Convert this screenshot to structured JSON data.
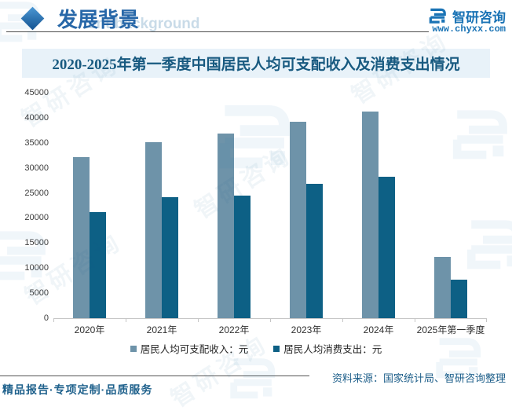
{
  "header": {
    "section_title": "发展背景",
    "section_ghost_text": "ent background",
    "brand": {
      "name": "智研咨询",
      "url": "www.chyxx.com"
    }
  },
  "chart_data": {
    "type": "bar",
    "title": "2020-2025年第一季度中国居民人均可支配收入及消费支出情况",
    "categories": [
      "2020年",
      "2021年",
      "2022年",
      "2023年",
      "2024年",
      "2025年第一季度"
    ],
    "series": [
      {
        "name": "居民人均可支配收入：元",
        "color": "#6e93a9",
        "values": [
          32189,
          35128,
          36883,
          39218,
          41314,
          12179
        ]
      },
      {
        "name": "居民人均消费支出：元",
        "color": "#0d6085",
        "values": [
          21210,
          24100,
          24538,
          26796,
          28227,
          7681
        ]
      }
    ],
    "ylim": [
      0,
      45000
    ],
    "ytick_step": 5000,
    "grid": false,
    "legend_position": "bottom"
  },
  "footer": {
    "source": "资料来源：国家统计局、智研咨询整理",
    "tagline": "精品报告·专项定制·品质服务"
  },
  "watermark": {
    "text": "智研咨询"
  },
  "colors": {
    "income_bar": "#6e93a9",
    "expense_bar": "#0d6085",
    "banner_bg": "#e8f2f9",
    "banner_text": "#185a80",
    "brand_blue": "#1a73b5",
    "footer_text": "#1f618c"
  }
}
